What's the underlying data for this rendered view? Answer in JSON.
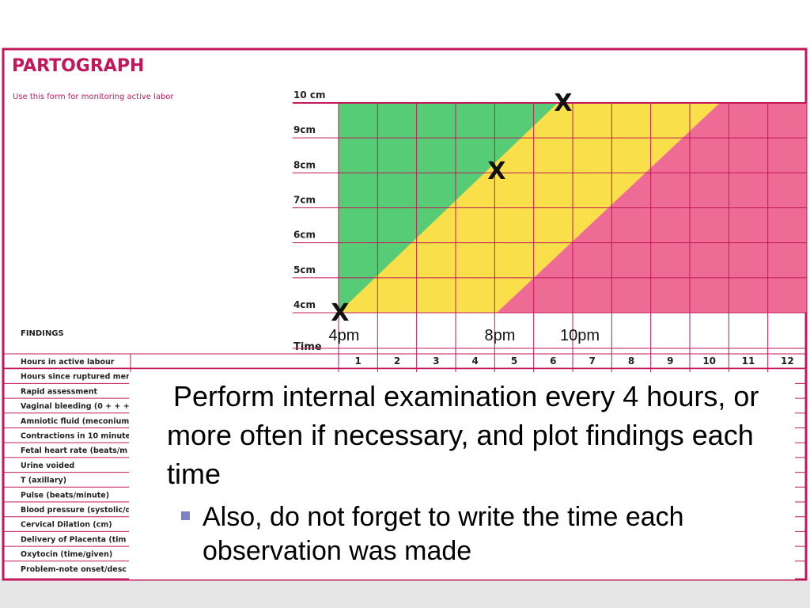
{
  "slide": {
    "form": {
      "title": "PARTOGRAPH",
      "subtitle": "Use this form for monitoring active labor",
      "dilation_labels": [
        "10 cm",
        "9cm",
        "8cm",
        "7cm",
        "6cm",
        "5cm",
        "4cm"
      ],
      "findings_label": "FINDINGS",
      "time_label": "Time",
      "hours": [
        "1",
        "2",
        "3",
        "4",
        "5",
        "6",
        "7",
        "8",
        "9",
        "10",
        "11",
        "12"
      ],
      "findings_rows": [
        "Hours in active labour",
        "Hours since ruptured mem",
        "Rapid assessment",
        "Vaginal bleeding (0 + + +)",
        "Amniotic fluid (meconium",
        "Contractions in 10 minute",
        "Fetal heart rate (beats/m",
        "Urine voided",
        "T (axillary)",
        "Pulse (beats/minute)",
        "Blood pressure (systolic/d",
        "Cervical Dilation (cm)",
        "Delivery of Placenta (tim",
        "Oxytocin (time/given)",
        "Problem-note onset/desc"
      ]
    },
    "plot_marks": [
      "X",
      "X",
      "X"
    ],
    "time_notes": [
      "4pm",
      "8pm",
      "10pm"
    ],
    "main_text": "Perform internal examination every 4 hours, or more often if necessary, and plot findings each time",
    "bullet_text": "Also, do not forget to write the time each observation was made"
  }
}
